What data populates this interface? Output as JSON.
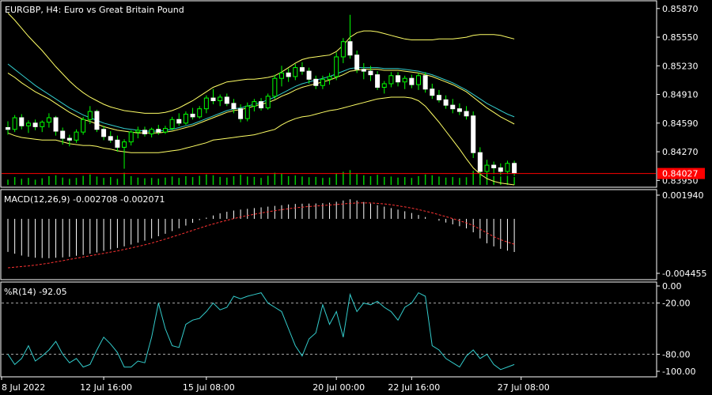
{
  "main_title": "EURGBP, H4:  Euro vs Great Britain Pound",
  "macd_label": "MACD(12,26,9) -0.002708 -0.002071",
  "wr_label": "%R(14) -92.05",
  "colors": {
    "background": "#000000",
    "border": "#ffffff",
    "bull": "#00ff00",
    "bear": "#ffffff",
    "bollinger": "#ffff66",
    "ma": "#33cccc",
    "volume": "#00cc00",
    "price_line": "#ff0000",
    "macd_hist": "#ffffff",
    "macd_signal": "#ff3333",
    "wr_line": "#33cccc"
  },
  "price_axis": [
    "0.85870",
    "0.85550",
    "0.85230",
    "0.84910",
    "0.84590",
    "0.84270",
    "0.83950"
  ],
  "current_price": "0.84027",
  "macd_axis": [
    "0.001940",
    "-0.004455"
  ],
  "wr_axis": [
    "0.00",
    "-20.00",
    "-80.00",
    "-100.00"
  ],
  "time_axis": [
    "8 Jul 2022",
    "12 Jul 16:00",
    "15 Jul 08:00",
    "20 Jul 00:00",
    "22 Jul 16:00",
    "27 Jul 08:00"
  ],
  "chart_data": [
    {
      "type": "candlestick",
      "title": "EURGBP, H4:  Euro vs Great Britain Pound",
      "ylim": [
        0.839,
        0.8593
      ],
      "candles": [
        [
          0.8454,
          0.8461,
          0.8446,
          0.8452
        ],
        [
          0.8452,
          0.8468,
          0.8449,
          0.8465
        ],
        [
          0.8465,
          0.8469,
          0.8452,
          0.8456
        ],
        [
          0.8456,
          0.8462,
          0.8448,
          0.8459
        ],
        [
          0.8459,
          0.8463,
          0.8451,
          0.8455
        ],
        [
          0.8455,
          0.8462,
          0.8449,
          0.846
        ],
        [
          0.846,
          0.847,
          0.8454,
          0.8465
        ],
        [
          0.8465,
          0.8467,
          0.8445,
          0.845
        ],
        [
          0.845,
          0.8454,
          0.8435,
          0.8442
        ],
        [
          0.8442,
          0.8446,
          0.8433,
          0.844
        ],
        [
          0.844,
          0.8452,
          0.8437,
          0.8449
        ],
        [
          0.8449,
          0.8466,
          0.8446,
          0.8463
        ],
        [
          0.8463,
          0.8478,
          0.8458,
          0.8472
        ],
        [
          0.8472,
          0.8474,
          0.8449,
          0.8452
        ],
        [
          0.8452,
          0.8456,
          0.844,
          0.8444
        ],
        [
          0.8444,
          0.845,
          0.8437,
          0.844
        ],
        [
          0.844,
          0.8445,
          0.8427,
          0.8432
        ],
        [
          0.8432,
          0.8441,
          0.8408,
          0.8438
        ],
        [
          0.8438,
          0.8451,
          0.8434,
          0.8449
        ],
        [
          0.8449,
          0.8455,
          0.8442,
          0.8451
        ],
        [
          0.8451,
          0.8455,
          0.8444,
          0.8447
        ],
        [
          0.8447,
          0.8454,
          0.8443,
          0.8452
        ],
        [
          0.8452,
          0.8457,
          0.8446,
          0.8449
        ],
        [
          0.8449,
          0.8456,
          0.8447,
          0.8453
        ],
        [
          0.8453,
          0.8466,
          0.8451,
          0.8463
        ],
        [
          0.8463,
          0.847,
          0.8456,
          0.8459
        ],
        [
          0.8459,
          0.8472,
          0.8457,
          0.8469
        ],
        [
          0.8469,
          0.8476,
          0.8463,
          0.8466
        ],
        [
          0.8466,
          0.8478,
          0.8464,
          0.8475
        ],
        [
          0.8475,
          0.849,
          0.847,
          0.8487
        ],
        [
          0.8487,
          0.8497,
          0.848,
          0.8484
        ],
        [
          0.8484,
          0.8491,
          0.8478,
          0.8488
        ],
        [
          0.8488,
          0.8492,
          0.8478,
          0.8481
        ],
        [
          0.8481,
          0.8486,
          0.847,
          0.8475
        ],
        [
          0.8475,
          0.848,
          0.846,
          0.8464
        ],
        [
          0.8464,
          0.8482,
          0.8461,
          0.8478
        ],
        [
          0.8478,
          0.8486,
          0.8472,
          0.8483
        ],
        [
          0.8483,
          0.8487,
          0.8473,
          0.8476
        ],
        [
          0.8476,
          0.8492,
          0.8474,
          0.8489
        ],
        [
          0.8489,
          0.8513,
          0.8486,
          0.8509
        ],
        [
          0.8509,
          0.8523,
          0.85,
          0.8515
        ],
        [
          0.8515,
          0.852,
          0.8505,
          0.8511
        ],
        [
          0.8511,
          0.8525,
          0.8507,
          0.8521
        ],
        [
          0.8521,
          0.8527,
          0.8513,
          0.8517
        ],
        [
          0.8517,
          0.8521,
          0.8503,
          0.8508
        ],
        [
          0.8508,
          0.8512,
          0.8497,
          0.8501
        ],
        [
          0.8501,
          0.8512,
          0.8497,
          0.8508
        ],
        [
          0.8508,
          0.8515,
          0.8502,
          0.8511
        ],
        [
          0.8511,
          0.8538,
          0.8507,
          0.8533
        ],
        [
          0.8533,
          0.8554,
          0.8526,
          0.855
        ],
        [
          0.855,
          0.858,
          0.8531,
          0.8535
        ],
        [
          0.8535,
          0.854,
          0.8515,
          0.8519
        ],
        [
          0.8519,
          0.8526,
          0.8508,
          0.8517
        ],
        [
          0.8517,
          0.8523,
          0.8506,
          0.8513
        ],
        [
          0.8513,
          0.8517,
          0.8496,
          0.8499
        ],
        [
          0.8499,
          0.8506,
          0.8492,
          0.8503
        ],
        [
          0.8503,
          0.8516,
          0.8499,
          0.8512
        ],
        [
          0.8512,
          0.8516,
          0.85,
          0.8505
        ],
        [
          0.8505,
          0.8512,
          0.8497,
          0.8509
        ],
        [
          0.8509,
          0.8513,
          0.8498,
          0.8502
        ],
        [
          0.8502,
          0.8515,
          0.8496,
          0.8512
        ],
        [
          0.8512,
          0.8516,
          0.8493,
          0.8497
        ],
        [
          0.8497,
          0.8503,
          0.8486,
          0.849
        ],
        [
          0.849,
          0.8496,
          0.8482,
          0.8485
        ],
        [
          0.8485,
          0.849,
          0.8475,
          0.8479
        ],
        [
          0.8479,
          0.8486,
          0.847,
          0.8475
        ],
        [
          0.8475,
          0.8481,
          0.8468,
          0.8472
        ],
        [
          0.8472,
          0.8478,
          0.8463,
          0.8467
        ],
        [
          0.8467,
          0.8472,
          0.842,
          0.8426
        ],
        [
          0.8426,
          0.8432,
          0.8398,
          0.8405
        ],
        [
          0.8405,
          0.8418,
          0.8399,
          0.8412
        ],
        [
          0.8412,
          0.8416,
          0.8402,
          0.8409
        ],
        [
          0.8409,
          0.8414,
          0.8401,
          0.8405
        ],
        [
          0.8405,
          0.8417,
          0.8402,
          0.8414
        ],
        [
          0.8414,
          0.8417,
          0.84,
          0.8403
        ]
      ],
      "bollinger_upper": [
        0.8582,
        0.8574,
        0.8565,
        0.8556,
        0.8548,
        0.854,
        0.8531,
        0.8522,
        0.8514,
        0.8506,
        0.8499,
        0.8493,
        0.8488,
        0.8484,
        0.848,
        0.8477,
        0.8475,
        0.8473,
        0.8472,
        0.8471,
        0.847,
        0.847,
        0.847,
        0.8471,
        0.8473,
        0.8476,
        0.848,
        0.8484,
        0.8489,
        0.8494,
        0.8499,
        0.8502,
        0.8505,
        0.8506,
        0.8507,
        0.8508,
        0.8508,
        0.8509,
        0.851,
        0.8512,
        0.8516,
        0.8521,
        0.8526,
        0.853,
        0.8532,
        0.8533,
        0.8534,
        0.8535,
        0.8539,
        0.8546,
        0.8555,
        0.856,
        0.8562,
        0.8562,
        0.8561,
        0.8559,
        0.8557,
        0.8555,
        0.8553,
        0.8552,
        0.8552,
        0.8552,
        0.8552,
        0.8553,
        0.8553,
        0.8553,
        0.8554,
        0.8555,
        0.8557,
        0.8558,
        0.8558,
        0.8558,
        0.8557,
        0.8555,
        0.8553
      ],
      "bollinger_middle": [
        0.8515,
        0.851,
        0.8504,
        0.8499,
        0.8494,
        0.849,
        0.8486,
        0.8481,
        0.8476,
        0.8471,
        0.8467,
        0.8463,
        0.8461,
        0.8458,
        0.8455,
        0.8453,
        0.8451,
        0.845,
        0.8449,
        0.8448,
        0.8448,
        0.8448,
        0.8448,
        0.8449,
        0.845,
        0.8452,
        0.8454,
        0.8456,
        0.8459,
        0.8462,
        0.8465,
        0.8468,
        0.8471,
        0.8473,
        0.8474,
        0.8476,
        0.8478,
        0.848,
        0.8482,
        0.8485,
        0.8489,
        0.8492,
        0.8496,
        0.8499,
        0.8501,
        0.8503,
        0.8505,
        0.8507,
        0.851,
        0.8513,
        0.8517,
        0.8518,
        0.8519,
        0.8519,
        0.8519,
        0.8518,
        0.8518,
        0.8518,
        0.8517,
        0.8516,
        0.8515,
        0.8513,
        0.8511,
        0.8508,
        0.8505,
        0.8502,
        0.8498,
        0.8494,
        0.8488,
        0.8482,
        0.8476,
        0.8471,
        0.8466,
        0.8462,
        0.8458
      ],
      "bollinger_lower": [
        0.8448,
        0.8445,
        0.8443,
        0.8442,
        0.8441,
        0.844,
        0.844,
        0.844,
        0.8438,
        0.8436,
        0.8435,
        0.8434,
        0.8434,
        0.8433,
        0.8431,
        0.843,
        0.8428,
        0.8427,
        0.8426,
        0.8426,
        0.8426,
        0.8426,
        0.8426,
        0.8427,
        0.8428,
        0.8429,
        0.8431,
        0.8433,
        0.8435,
        0.8437,
        0.844,
        0.8441,
        0.8442,
        0.8443,
        0.8444,
        0.8445,
        0.8446,
        0.8448,
        0.845,
        0.8452,
        0.8457,
        0.8461,
        0.8464,
        0.8466,
        0.8467,
        0.8469,
        0.8471,
        0.8473,
        0.8474,
        0.8476,
        0.8478,
        0.848,
        0.8482,
        0.8484,
        0.8486,
        0.8487,
        0.8488,
        0.8488,
        0.8488,
        0.8487,
        0.8484,
        0.8478,
        0.8469,
        0.846,
        0.845,
        0.844,
        0.843,
        0.8419,
        0.8409,
        0.8402,
        0.8397,
        0.8394,
        0.8392,
        0.8391,
        0.839
      ],
      "moving_average": [
        0.8525,
        0.8519,
        0.8513,
        0.8507,
        0.8501,
        0.8496,
        0.8491,
        0.8486,
        0.8481,
        0.8476,
        0.8472,
        0.8468,
        0.8465,
        0.8462,
        0.8459,
        0.8457,
        0.8455,
        0.8453,
        0.8452,
        0.8451,
        0.845,
        0.845,
        0.845,
        0.8451,
        0.8452,
        0.8454,
        0.8456,
        0.8458,
        0.8461,
        0.8464,
        0.8467,
        0.847,
        0.8473,
        0.8475,
        0.8476,
        0.8478,
        0.848,
        0.8482,
        0.8485,
        0.8488,
        0.8492,
        0.8496,
        0.85,
        0.8503,
        0.8505,
        0.8507,
        0.8509,
        0.8511,
        0.8514,
        0.8517,
        0.852,
        0.8521,
        0.8521,
        0.8521,
        0.8521,
        0.852,
        0.852,
        0.852,
        0.8519,
        0.8518,
        0.8517,
        0.8515,
        0.8513,
        0.851,
        0.8507,
        0.8504,
        0.85,
        0.8496,
        0.8491,
        0.8486,
        0.8481,
        0.8477,
        0.8473,
        0.8469,
        0.8466
      ],
      "volume": [
        0.3,
        0.45,
        0.35,
        0.4,
        0.3,
        0.38,
        0.5,
        0.55,
        0.42,
        0.35,
        0.4,
        0.52,
        0.6,
        0.48,
        0.4,
        0.45,
        0.35,
        0.7,
        0.5,
        0.42,
        0.38,
        0.4,
        0.36,
        0.42,
        0.48,
        0.4,
        0.5,
        0.45,
        0.52,
        0.6,
        0.55,
        0.46,
        0.42,
        0.5,
        0.58,
        0.48,
        0.46,
        0.4,
        0.52,
        0.7,
        0.66,
        0.5,
        0.54,
        0.48,
        0.44,
        0.46,
        0.4,
        0.42,
        0.65,
        0.75,
        0.85,
        0.62,
        0.55,
        0.5,
        0.58,
        0.46,
        0.48,
        0.42,
        0.45,
        0.4,
        0.5,
        0.6,
        0.55,
        0.48,
        0.42,
        0.45,
        0.4,
        0.44,
        0.8,
        0.9,
        0.6,
        0.5,
        0.48,
        0.52,
        0.45
      ]
    },
    {
      "type": "histogram_line",
      "title": "MACD(12,26,9) -0.002708 -0.002071",
      "ylim": [
        -0.004455,
        0.00194
      ],
      "macd": [
        -0.0027,
        -0.00285,
        -0.003,
        -0.0031,
        -0.00318,
        -0.0032,
        -0.00322,
        -0.00318,
        -0.00315,
        -0.0031,
        -0.00302,
        -0.00295,
        -0.00285,
        -0.00275,
        -0.00262,
        -0.0025,
        -0.00238,
        -0.00225,
        -0.0021,
        -0.00195,
        -0.00178,
        -0.0016,
        -0.00142,
        -0.00122,
        -0.001,
        -0.00078,
        -0.00055,
        -0.00032,
        -0.0001,
        0.0001,
        0.00028,
        0.00045,
        0.00058,
        0.00068,
        0.00076,
        0.00082,
        0.00088,
        0.00094,
        0.001,
        0.00106,
        0.00112,
        0.00118,
        0.00122,
        0.00124,
        0.00125,
        0.00126,
        0.00128,
        0.00132,
        0.0014,
        0.0015,
        0.0016,
        0.0015,
        0.00138,
        0.00125,
        0.00112,
        0.001,
        0.00088,
        0.00076,
        0.00062,
        0.00048,
        0.00032,
        0.00015,
        0.0,
        -0.00015,
        -0.0003,
        -0.00045,
        -0.0006,
        -0.00078,
        -0.0011,
        -0.0016,
        -0.002,
        -0.00225,
        -0.00245,
        -0.0026,
        -0.00271
      ],
      "signal": [
        -0.004,
        -0.00395,
        -0.0039,
        -0.00385,
        -0.00378,
        -0.0037,
        -0.00362,
        -0.00352,
        -0.00342,
        -0.00332,
        -0.00322,
        -0.00312,
        -0.00302,
        -0.00292,
        -0.00282,
        -0.00272,
        -0.00262,
        -0.0025,
        -0.00238,
        -0.00226,
        -0.00212,
        -0.00198,
        -0.00182,
        -0.00166,
        -0.00148,
        -0.0013,
        -0.00112,
        -0.00094,
        -0.00076,
        -0.00058,
        -0.00042,
        -0.00026,
        -0.00012,
        2e-05,
        0.00015,
        0.00027,
        0.00038,
        0.00048,
        0.00058,
        0.00067,
        0.00075,
        0.00083,
        0.0009,
        0.00096,
        0.00101,
        0.00105,
        0.00109,
        0.00113,
        0.00117,
        0.00122,
        0.00127,
        0.0013,
        0.00131,
        0.0013,
        0.00127,
        0.00122,
        0.00115,
        0.00107,
        0.00098,
        0.00088,
        0.00076,
        0.00063,
        0.00049,
        0.00034,
        0.00018,
        2e-05,
        -0.00015,
        -0.00033,
        -0.00055,
        -0.00085,
        -0.00115,
        -0.00145,
        -0.0017,
        -0.0019,
        -0.00207
      ]
    },
    {
      "type": "line",
      "title": "%R(14) -92.05",
      "ylim": [
        -100,
        0
      ],
      "levels": [
        -20,
        -80
      ],
      "values": [
        -80,
        -92,
        -85,
        -70,
        -88,
        -82,
        -75,
        -65,
        -80,
        -90,
        -85,
        -95,
        -92,
        -75,
        -60,
        -68,
        -78,
        -95,
        -95,
        -88,
        -90,
        -60,
        -20,
        -50,
        -70,
        -72,
        -45,
        -40,
        -38,
        -30,
        -20,
        -28,
        -25,
        -12,
        -15,
        -12,
        -10,
        -8,
        -20,
        -25,
        -30,
        -50,
        -70,
        -82,
        -62,
        -55,
        -22,
        -45,
        -30,
        -60,
        -10,
        -30,
        -20,
        -22,
        -18,
        -25,
        -30,
        -40,
        -25,
        -20,
        -8,
        -12,
        -70,
        -75,
        -85,
        -90,
        -95,
        -82,
        -75,
        -85,
        -80,
        -92,
        -98,
        -95,
        -92
      ]
    }
  ]
}
